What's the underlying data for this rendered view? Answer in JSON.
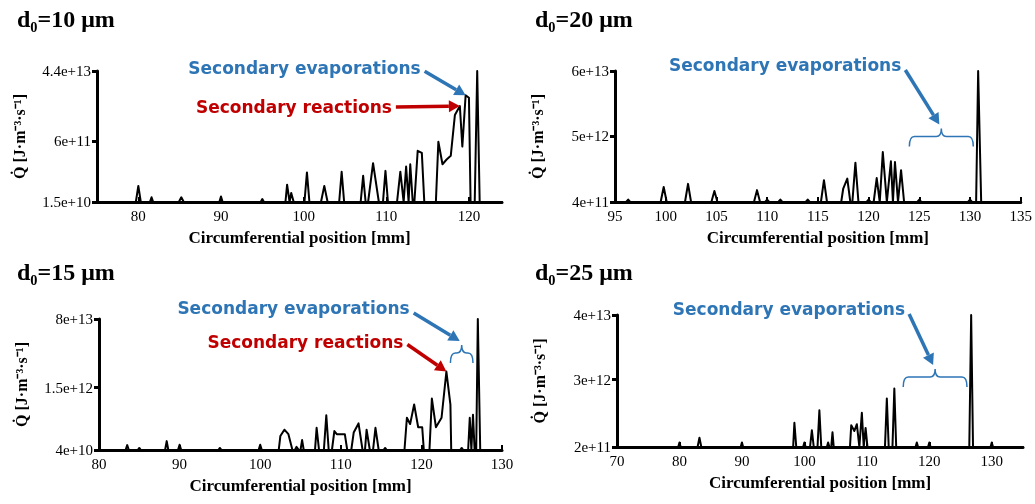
{
  "chart_data": [
    {
      "type": "line",
      "title": "d₀=10 μm",
      "xlabel": "Circumferential position [mm]",
      "ylabel": "Q̇ [J·m⁻³·s⁻¹]",
      "log": "y",
      "xlim": [
        75,
        124
      ],
      "xticks": [
        80,
        90,
        100,
        110,
        120
      ],
      "ylim": [
        15000000000.0,
        44000000000000.0
      ],
      "yticks": [
        {
          "value": 15000000000.0,
          "label": "1.5e+10"
        },
        {
          "value": 600000000000.0,
          "label": "6e+11"
        },
        {
          "value": 44000000000000.0,
          "label": "4.4e+13"
        }
      ],
      "series": [
        {
          "color": "#000000",
          "x": [
            75,
            79.7,
            80,
            80.3,
            81.4,
            81.6,
            81.8,
            84.9,
            85.2,
            85.5,
            89.8,
            90,
            90.2,
            94.8,
            95,
            95.2,
            97.8,
            98,
            98.3,
            98.5,
            98.8,
            100.1,
            100.4,
            100.7,
            102.1,
            102.5,
            102.9,
            104.3,
            104.6,
            104.9,
            106.9,
            107.2,
            107.5,
            107.8,
            108.4,
            109.1,
            109.6,
            109.9,
            110.2,
            111.3,
            111.7,
            112.1,
            112.4,
            112.7,
            112.9,
            113.2,
            113.4,
            113.8,
            114.3,
            114.6,
            116.0,
            116.3,
            116.8,
            117.3,
            117.8,
            118.3,
            118.9,
            119.2,
            119.6,
            120,
            120.2,
            120.7,
            121,
            121.3,
            124
          ],
          "values": [
            15000000000.0,
            15000000000.0,
            40000000000.0,
            15000000000.0,
            15000000000.0,
            20000000000.0,
            15000000000.0,
            15000000000.0,
            20000000000.0,
            15000000000.0,
            15000000000.0,
            21000000000.0,
            15000000000.0,
            15000000000.0,
            18000000000.0,
            15000000000.0,
            15000000000.0,
            43000000000.0,
            15000000000.0,
            26000000000.0,
            15000000000.0,
            15000000000.0,
            91000000000.0,
            15000000000.0,
            15000000000.0,
            40000000000.0,
            15000000000.0,
            15000000000.0,
            95000000000.0,
            15000000000.0,
            15000000000.0,
            74000000000.0,
            15000000000.0,
            15000000000.0,
            160000000000.0,
            15000000000.0,
            15000000000.0,
            100000000000.0,
            15000000000.0,
            15000000000.0,
            95000000000.0,
            15000000000.0,
            130000000000.0,
            15000000000.0,
            150000000000.0,
            15000000000.0,
            15000000000.0,
            340000000000.0,
            300000000000.0,
            15000000000.0,
            15000000000.0,
            590000000000.0,
            150000000000.0,
            200000000000.0,
            250000000000.0,
            3000000000000.0,
            5200000000000.0,
            440000000000.0,
            10000000000000.0,
            8600000000000.0,
            15000000000.0,
            15000000000.0,
            44000000000000.0,
            15000000000.0,
            15000000000.0
          ]
        }
      ],
      "annotations": [
        {
          "text": "Secondary evaporations",
          "x": 119.6,
          "y": 10000000000000.0
        },
        "Secondary reactions"
      ]
    },
    {
      "type": "line",
      "title": "d₀=20 μm",
      "xlabel": "Circumferential position [mm]",
      "ylabel": "Q̇ [J·m⁻³·s⁻¹]",
      "log": "y",
      "xlim": [
        95,
        135
      ],
      "xticks": [
        95,
        100,
        105,
        110,
        115,
        120,
        125,
        130,
        135
      ],
      "ylim": [
        400000000000.0,
        60000000000000.0
      ],
      "yticks": [
        {
          "value": 400000000000.0,
          "label": "4e+11"
        },
        {
          "value": 5000000000000.0,
          "label": "5e+12"
        },
        {
          "value": 60000000000000.0,
          "label": "6e+13"
        }
      ],
      "series": [
        {
          "color": "#000000",
          "x": [
            95,
            96.1,
            96.3,
            96.5,
            99.5,
            99.8,
            100.1,
            101.9,
            102.2,
            102.5,
            104.5,
            104.8,
            105.1,
            108.7,
            109,
            109.3,
            109.8,
            110,
            110.2,
            111.1,
            111.3,
            111.5,
            113.8,
            114,
            114.2,
            115.3,
            115.6,
            115.9,
            117.3,
            117.5,
            117.9,
            118.2,
            118.4,
            118.7,
            119,
            119.8,
            120,
            120.2,
            120.5,
            120.8,
            121.1,
            121.4,
            121.8,
            122.2,
            122.4,
            122.6,
            122.9,
            123.2,
            123.5,
            124.8,
            125,
            125.2,
            129.8,
            130,
            130.2,
            130.6,
            130.8,
            131.1,
            135
          ],
          "values": [
            400000000000.0,
            400000000000.0,
            440000000000.0,
            400000000000.0,
            400000000000.0,
            710000000000.0,
            400000000000.0,
            400000000000.0,
            800000000000.0,
            400000000000.0,
            400000000000.0,
            610000000000.0,
            400000000000.0,
            400000000000.0,
            630000000000.0,
            400000000000.0,
            400000000000.0,
            440000000000.0,
            400000000000.0,
            400000000000.0,
            440000000000.0,
            400000000000.0,
            400000000000.0,
            440000000000.0,
            400000000000.0,
            400000000000.0,
            920000000000.0,
            400000000000.0,
            400000000000.0,
            670000000000.0,
            980000000000.0,
            400000000000.0,
            400000000000.0,
            1800000000000.0,
            400000000000.0,
            400000000000.0,
            440000000000.0,
            400000000000.0,
            400000000000.0,
            1000000000000.0,
            400000000000.0,
            2700000000000.0,
            400000000000.0,
            1900000000000.0,
            400000000000.0,
            1850000000000.0,
            400000000000.0,
            1350000000000.0,
            400000000000.0,
            400000000000.0,
            440000000000.0,
            400000000000.0,
            400000000000.0,
            440000000000.0,
            400000000000.0,
            400000000000.0,
            60000000000000.0,
            400000000000.0,
            400000000000.0
          ]
        }
      ],
      "annotations": [
        "Secondary evaporations"
      ]
    },
    {
      "type": "line",
      "title": "d₀=15 μm",
      "xlabel": "Circumferential position [mm]",
      "ylabel": "Q̇ [J·m⁻³·s⁻¹]",
      "log": "y",
      "xlim": [
        80,
        130
      ],
      "xticks": [
        80,
        90,
        100,
        110,
        120,
        130
      ],
      "ylim": [
        40000000000.0,
        80000000000000.0
      ],
      "yticks": [
        {
          "value": 40000000000.0,
          "label": "4e+10"
        },
        {
          "value": 1500000000000.0,
          "label": "1.5e+12"
        },
        {
          "value": 80000000000000.0,
          "label": "8e+13"
        }
      ],
      "series": [
        {
          "color": "#000000",
          "x": [
            80,
            83.3,
            83.5,
            83.7,
            84.8,
            85,
            85.2,
            88.2,
            88.4,
            88.6,
            89.8,
            90,
            90.2,
            94.8,
            95,
            95.2,
            99.8,
            100,
            100.2,
            102.3,
            102.5,
            103,
            103.5,
            104,
            104.3,
            104.5,
            104.8,
            105,
            105.2,
            105.4,
            106.8,
            107,
            107.3,
            107.9,
            108.2,
            108.5,
            108.9,
            109.2,
            109.5,
            110.5,
            110.8,
            111.3,
            111.6,
            112.2,
            112.7,
            113,
            113.2,
            113.6,
            114,
            114.3,
            114.7,
            115.3,
            115.5,
            115.7,
            117.9,
            118.2,
            118.6,
            119.1,
            119.6,
            120.1,
            120.3,
            121,
            121.3,
            121.8,
            122.5,
            123.1,
            123.6,
            123.7,
            124.8,
            125,
            125.2,
            125.8,
            126,
            126.2,
            126.4,
            126.6,
            126.8,
            127,
            127.3,
            130
          ],
          "values": [
            40000000000.0,
            40000000000.0,
            53000000000.0,
            40000000000.0,
            40000000000.0,
            45000000000.0,
            40000000000.0,
            40000000000.0,
            67000000000.0,
            40000000000.0,
            40000000000.0,
            54000000000.0,
            40000000000.0,
            40000000000.0,
            45000000000.0,
            40000000000.0,
            40000000000.0,
            54000000000.0,
            40000000000.0,
            40000000000.0,
            90000000000.0,
            130000000000.0,
            100000000000.0,
            40000000000.0,
            40000000000.0,
            48000000000.0,
            40000000000.0,
            40000000000.0,
            71000000000.0,
            40000000000.0,
            40000000000.0,
            145000000000.0,
            40000000000.0,
            40000000000.0,
            300000000000.0,
            40000000000.0,
            40000000000.0,
            120000000000.0,
            100000000000.0,
            100000000000.0,
            40000000000.0,
            40000000000.0,
            110000000000.0,
            187000000000.0,
            40000000000.0,
            40000000000.0,
            130000000000.0,
            40000000000.0,
            40000000000.0,
            145000000000.0,
            40000000000.0,
            40000000000.0,
            45000000000.0,
            40000000000.0,
            40000000000.0,
            260000000000.0,
            180000000000.0,
            560000000000.0,
            150000000000.0,
            150000000000.0,
            40000000000.0,
            40000000000.0,
            790000000000.0,
            150000000000.0,
            260000000000.0,
            3800000000000.0,
            560000000000.0,
            40000000000.0,
            40000000000.0,
            45000000000.0,
            40000000000.0,
            40000000000.0,
            260000000000.0,
            40000000000.0,
            310000000000.0,
            40000000000.0,
            40000000000.0,
            80000000000000.0,
            40000000000.0,
            40000000000.0
          ]
        }
      ],
      "annotations": [
        "Secondary evaporations",
        {
          "text": "Secondary reactions",
          "x": 123.1,
          "y": 3800000000000.0
        }
      ]
    },
    {
      "type": "line",
      "title": "d₀=25 μm",
      "xlabel": "Circumferential position [mm]",
      "ylabel": "Q̇ [J·m⁻³·s⁻¹]",
      "log": "y",
      "xlim": [
        70,
        135
      ],
      "xticks": [
        70,
        80,
        90,
        100,
        110,
        120,
        130
      ],
      "ylim": [
        200000000000.0,
        40000000000000.0
      ],
      "yticks": [
        {
          "value": 200000000000.0,
          "label": "2e+11"
        },
        {
          "value": 3000000000000.0,
          "label": "3e+12"
        },
        {
          "value": 40000000000000.0,
          "label": "4e+13"
        }
      ],
      "series": [
        {
          "color": "#000000",
          "x": [
            70,
            79.8,
            80,
            80.2,
            82.9,
            83.2,
            83.5,
            89.8,
            90,
            90.2,
            98.2,
            98.4,
            98.7,
            99.8,
            100,
            100.2,
            100.9,
            101.2,
            101.5,
            102.1,
            102.4,
            102.7,
            103.6,
            103.8,
            104,
            104.3,
            104.5,
            104.7,
            107.3,
            107.5,
            108,
            108.4,
            108.8,
            109.2,
            109.5,
            109.8,
            110.1,
            112.9,
            113.2,
            113.5,
            114.1,
            114.4,
            114.7,
            117.8,
            118,
            118.2,
            119.8,
            120,
            120.2,
            126.4,
            126.7,
            127,
            129.8,
            130,
            130.2,
            135
          ],
          "values": [
            200000000000.0,
            200000000000.0,
            240000000000.0,
            200000000000.0,
            200000000000.0,
            290000000000.0,
            200000000000.0,
            200000000000.0,
            240000000000.0,
            200000000000.0,
            200000000000.0,
            530000000000.0,
            200000000000.0,
            200000000000.0,
            240000000000.0,
            200000000000.0,
            200000000000.0,
            390000000000.0,
            200000000000.0,
            200000000000.0,
            870000000000.0,
            200000000000.0,
            200000000000.0,
            240000000000.0,
            200000000000.0,
            200000000000.0,
            360000000000.0,
            200000000000.0,
            200000000000.0,
            480000000000.0,
            380000000000.0,
            500000000000.0,
            200000000000.0,
            790000000000.0,
            200000000000.0,
            430000000000.0,
            200000000000.0,
            200000000000.0,
            1400000000000.0,
            200000000000.0,
            200000000000.0,
            2100000000000.0,
            200000000000.0,
            200000000000.0,
            240000000000.0,
            200000000000.0,
            200000000000.0,
            240000000000.0,
            200000000000.0,
            200000000000.0,
            40000000000000.0,
            200000000000.0,
            200000000000.0,
            240000000000.0,
            200000000000.0,
            200000000000.0
          ]
        }
      ],
      "annotations": [
        "Secondary evaporations"
      ]
    }
  ]
}
